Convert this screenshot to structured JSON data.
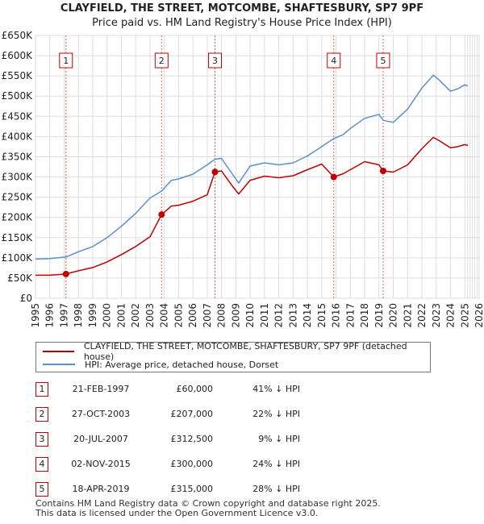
{
  "title_line1": "CLAYFIELD, THE STREET, MOTCOMBE, SHAFTESBURY, SP7 9PF",
  "title_line2": "Price paid vs. HM Land Registry's House Price Index (HPI)",
  "colors": {
    "property": "#c00000",
    "hpi": "#5b8fd0",
    "sale_marker_line": "#e06060"
  },
  "chart_data": {
    "type": "line",
    "title": "CLAYFIELD, THE STREET, MOTCOMBE, SHAFTESBURY, SP7 9PF",
    "subtitle": "Price paid vs. HM Land Registry's House Price Index (HPI)",
    "xlabel": "",
    "ylabel": "",
    "xlim": [
      1995,
      2026
    ],
    "ylim": [
      0,
      650000
    ],
    "y_ticks": [
      0,
      50000,
      100000,
      150000,
      200000,
      250000,
      300000,
      350000,
      400000,
      450000,
      500000,
      550000,
      600000,
      650000
    ],
    "y_tick_labels": [
      "£0",
      "£50K",
      "£100K",
      "£150K",
      "£200K",
      "£250K",
      "£300K",
      "£350K",
      "£400K",
      "£450K",
      "£500K",
      "£550K",
      "£600K",
      "£650K"
    ],
    "x_tick_labels": [
      "1995",
      "1996",
      "1997",
      "1998",
      "1999",
      "2000",
      "2001",
      "2002",
      "2003",
      "2004",
      "2005",
      "2006",
      "2007",
      "2008",
      "2009",
      "2010",
      "2011",
      "2012",
      "2013",
      "2014",
      "2015",
      "2016",
      "2017",
      "2018",
      "2019",
      "2020",
      "2021",
      "2022",
      "2023",
      "2024",
      "2025",
      "2026"
    ],
    "grid": true,
    "series": [
      {
        "name": "CLAYFIELD, THE STREET, MOTCOMBE, SHAFTESBURY, SP7 9PF (detached house)",
        "x": [
          1995.0,
          1996.0,
          1997.13,
          1998.0,
          1999.0,
          2000.0,
          2001.0,
          2002.0,
          2003.0,
          2003.81,
          2004.5,
          2005.0,
          2006.0,
          2007.0,
          2007.54,
          2008.0,
          2008.7,
          2009.2,
          2010.0,
          2011.0,
          2012.0,
          2013.0,
          2014.0,
          2015.0,
          2015.84,
          2016.5,
          2017.0,
          2018.0,
          2019.0,
          2019.29,
          2020.0,
          2021.0,
          2022.0,
          2022.8,
          2023.2,
          2024.0,
          2024.5,
          2025.0,
          2025.2
        ],
        "values": [
          57000,
          57000,
          60000,
          68000,
          76000,
          90000,
          108000,
          128000,
          152000,
          207000,
          228000,
          230000,
          240000,
          256000,
          312500,
          315000,
          280000,
          258000,
          292000,
          302000,
          298000,
          303000,
          318000,
          332000,
          300000,
          308000,
          318000,
          338000,
          330000,
          315000,
          312000,
          330000,
          370000,
          398000,
          390000,
          372000,
          375000,
          380000,
          378000
        ]
      },
      {
        "name": "HPI: Average price, detached house, Dorset",
        "x": [
          1995.0,
          1996.0,
          1997.13,
          1998.0,
          1999.0,
          2000.0,
          2001.0,
          2002.0,
          2003.0,
          2003.81,
          2004.5,
          2005.0,
          2006.0,
          2007.0,
          2007.54,
          2008.0,
          2008.7,
          2009.2,
          2010.0,
          2011.0,
          2012.0,
          2013.0,
          2014.0,
          2015.0,
          2015.84,
          2016.5,
          2017.0,
          2018.0,
          2019.0,
          2019.29,
          2020.0,
          2021.0,
          2022.0,
          2022.8,
          2023.2,
          2024.0,
          2024.5,
          2025.0,
          2025.2
        ],
        "values": [
          97000,
          98000,
          102000,
          115000,
          128000,
          150000,
          178000,
          210000,
          248000,
          265000,
          292000,
          295000,
          307000,
          330000,
          344000,
          346000,
          310000,
          285000,
          327000,
          335000,
          330000,
          335000,
          352000,
          375000,
          395000,
          405000,
          420000,
          445000,
          455000,
          440000,
          435000,
          468000,
          520000,
          552000,
          540000,
          512000,
          518000,
          528000,
          525000
        ]
      }
    ],
    "sale_markers": [
      {
        "label": "1",
        "x": 1997.13,
        "value": 60000
      },
      {
        "label": "2",
        "x": 2003.81,
        "value": 207000
      },
      {
        "label": "3",
        "x": 2007.54,
        "value": 312500
      },
      {
        "label": "4",
        "x": 2015.84,
        "value": 300000
      },
      {
        "label": "5",
        "x": 2019.29,
        "value": 315000
      }
    ]
  },
  "legend": {
    "property": "CLAYFIELD, THE STREET, MOTCOMBE, SHAFTESBURY, SP7 9PF (detached house)",
    "hpi": "HPI: Average price, detached house, Dorset"
  },
  "sales": [
    {
      "num": "1",
      "date": "21-FEB-1997",
      "price": "£60,000",
      "hpi": "41% ↓ HPI"
    },
    {
      "num": "2",
      "date": "27-OCT-2003",
      "price": "£207,000",
      "hpi": "22% ↓ HPI"
    },
    {
      "num": "3",
      "date": "20-JUL-2007",
      "price": "£312,500",
      "hpi": "9% ↓ HPI"
    },
    {
      "num": "4",
      "date": "02-NOV-2015",
      "price": "£300,000",
      "hpi": "24% ↓ HPI"
    },
    {
      "num": "5",
      "date": "18-APR-2019",
      "price": "£315,000",
      "hpi": "28% ↓ HPI"
    }
  ],
  "footer": {
    "line1": "Contains HM Land Registry data © Crown copyright and database right 2025.",
    "line2": "This data is licensed under the Open Government Licence v3.0."
  }
}
